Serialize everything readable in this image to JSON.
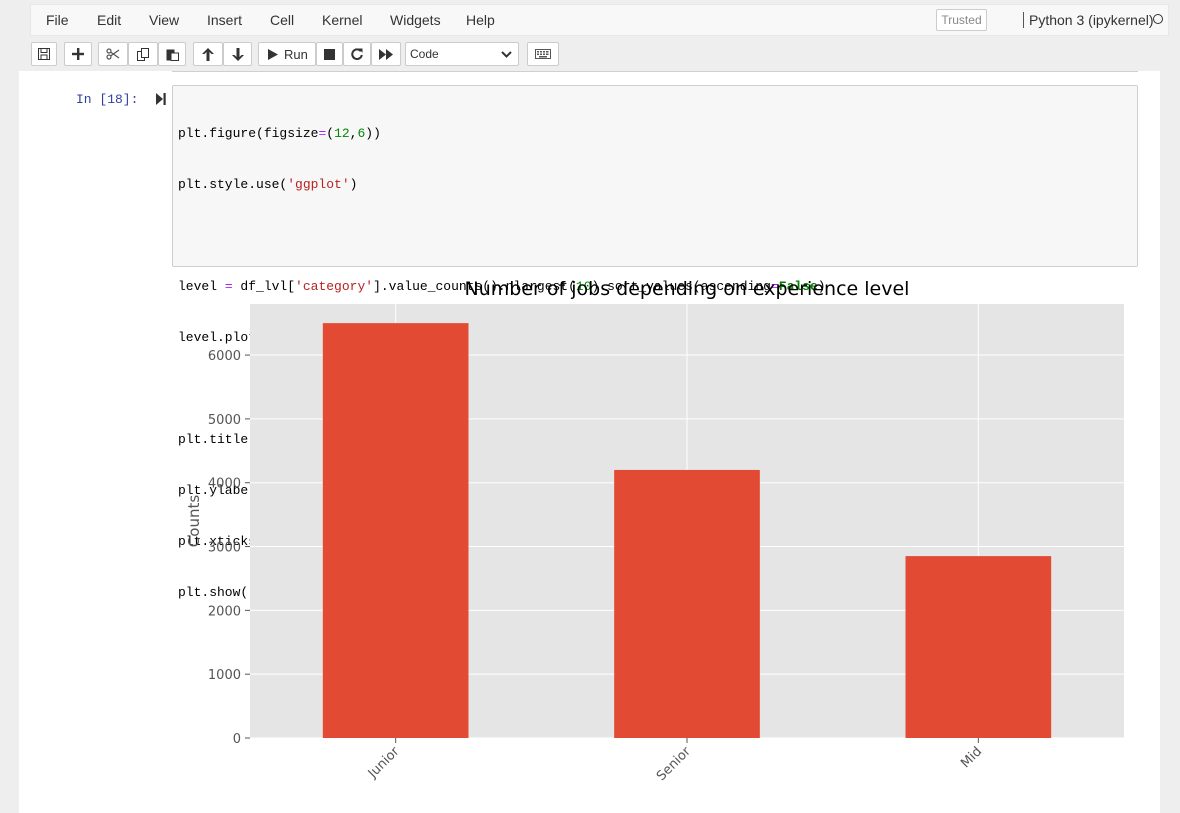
{
  "menu": {
    "items": [
      "File",
      "Edit",
      "View",
      "Insert",
      "Cell",
      "Kernel",
      "Widgets",
      "Help"
    ],
    "trusted": "Trusted",
    "kernel": "Python 3 (ipykernel)"
  },
  "toolbar": {
    "run_label": "Run",
    "cell_type": "Code",
    "icons": [
      "save-icon",
      "plus-icon",
      "cut-icon",
      "copy-icon",
      "paste-icon",
      "arrow-up-icon",
      "arrow-down-icon",
      "run-icon",
      "stop-icon",
      "restart-icon",
      "fast-forward-icon",
      "keyboard-icon"
    ]
  },
  "cell": {
    "prompt": "In [18]:",
    "code_lines": [
      "plt.figure(figsize=(12,6))",
      "plt.style.use('ggplot')",
      "",
      "level = df_lvl['category'].value_counts().nlargest(10).sort_values(ascending=False)",
      "level.plot(kind='bar')",
      "",
      "plt.title(\"Number of jobs depending on experience level\")",
      "plt.ylabel(\"Counts\")",
      "plt.xticks(rotation=45, ha=\"right\")",
      "plt.show()"
    ]
  },
  "chart_data": {
    "type": "bar",
    "title": "Number of jobs depending on experience level",
    "xlabel": "",
    "ylabel": "Counts",
    "categories": [
      "Junior",
      "Senior",
      "Mid"
    ],
    "values": [
      6500,
      4200,
      2850
    ],
    "ylim": [
      0,
      6800
    ],
    "yticks": [
      0,
      1000,
      2000,
      3000,
      4000,
      5000,
      6000
    ],
    "grid": true,
    "bar_color": "#e24a33",
    "background": "#e5e5e5"
  }
}
